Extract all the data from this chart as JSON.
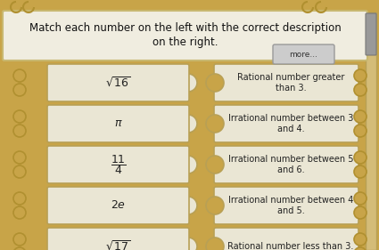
{
  "title_line1": "Match each number on the left with the correct description",
  "title_line2": "on the right.",
  "more_btn": "more...",
  "bg_color": "#c8a448",
  "header_bg": "#f0ede0",
  "header_border": "#c8b870",
  "card_bg": "#eae6d4",
  "card_border": "#b8a055",
  "left_items": [
    {
      "label": "$\\sqrt{16}$"
    },
    {
      "label": "$\\pi$"
    },
    {
      "label": "$\\dfrac{11}{4}$"
    },
    {
      "label": "$2e$"
    },
    {
      "label": "$\\sqrt{17}$"
    }
  ],
  "right_items": [
    {
      "label": "Rational number greater\nthan 3."
    },
    {
      "label": "Irrational number between 3\nand 4."
    },
    {
      "label": "Irrational number between 5\nand 6."
    },
    {
      "label": "Irrational number between 4\nand 5."
    },
    {
      "label": "Rational number less than 3."
    }
  ],
  "swirl_color": "#b09030",
  "connector_bg": "#c8a448",
  "scrollbar_color": "#888888",
  "more_bg": "#cccccc",
  "more_border": "#999999"
}
